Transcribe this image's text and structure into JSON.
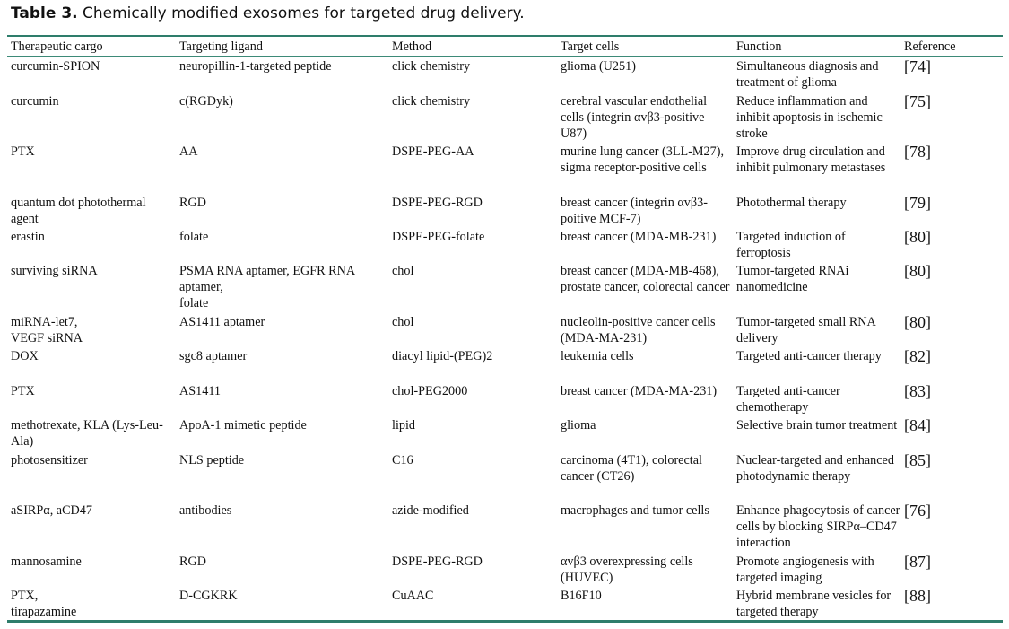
{
  "caption": {
    "label": "Table 3.",
    "text": "Chemically modified exosomes for targeted drug delivery."
  },
  "table": {
    "headers": [
      "Therapeutic cargo",
      "Targeting ligand",
      "Method",
      "Target cells",
      "Function",
      "Reference"
    ],
    "rows": [
      {
        "h": 39,
        "cells": [
          "curcumin-SPION",
          "neuropillin-1-targeted peptide",
          "click chemistry",
          "glioma (U251)",
          "Simultaneous diagnosis and treatment of glioma",
          "[74]"
        ]
      },
      {
        "h": 56,
        "cells": [
          "curcumin",
          "c(RGDyk)",
          "click chemistry",
          "cerebral vascular endothelial cells (integrin αvβ3-positive U87)",
          "Reduce inflammation and inhibit apoptosis in ischemic stroke",
          "[75]"
        ]
      },
      {
        "h": 57,
        "cells": [
          "PTX",
          "AA",
          "DSPE-PEG-AA",
          "murine lung cancer (3LL-M27), sigma receptor-positive cells",
          "Improve drug circulation and inhibit pulmonary metastases",
          "[78]"
        ]
      },
      {
        "h": 38,
        "cells": [
          "quantum dot photothermal agent",
          "RGD",
          "DSPE-PEG-RGD",
          "breast cancer (integrin αvβ3-poitive MCF-7)",
          "Photothermal therapy",
          "[79]"
        ]
      },
      {
        "h": 38,
        "cells": [
          "erastin",
          "folate",
          "DSPE-PEG-folate",
          "breast cancer (MDA-MB-231)",
          "Targeted induction of ferroptosis",
          "[80]"
        ]
      },
      {
        "h": 57,
        "cells": [
          "surviving siRNA",
          "PSMA RNA aptamer, EGFR RNA aptamer,\nfolate",
          "chol",
          "breast cancer (MDA-MB-468), prostate cancer, colorectal cancer",
          "Tumor-targeted RNAi nanomedicine",
          "[80]"
        ]
      },
      {
        "h": 38,
        "cells": [
          "miRNA-let7,\nVEGF siRNA",
          "AS1411 aptamer",
          "chol",
          "nucleolin-positive cancer cells (MDA-MA-231)",
          "Tumor-targeted small RNA delivery",
          "[80]"
        ]
      },
      {
        "h": 39,
        "cells": [
          "DOX",
          "sgc8 aptamer",
          "diacyl lipid-(PEG)2",
          "leukemia cells",
          "Targeted anti-cancer therapy",
          "[82]"
        ]
      },
      {
        "h": 38,
        "cells": [
          "PTX",
          "AS1411",
          "chol-PEG2000",
          "breast cancer (MDA-MA-231)",
          "Targeted anti-cancer chemotherapy",
          "[83]"
        ]
      },
      {
        "h": 39,
        "cells": [
          "methotrexate, KLA (Lys-Leu-Ala)",
          "ApoA-1 mimetic peptide",
          "lipid",
          "glioma",
          "Selective brain tumor treatment",
          "[84]"
        ]
      },
      {
        "h": 56,
        "cells": [
          "photosensitizer",
          "NLS peptide",
          "C16",
          "carcinoma (4T1), colorectal cancer (CT26)",
          "Nuclear-targeted and enhanced photodynamic therapy",
          "[85]"
        ]
      },
      {
        "h": 57,
        "cells": [
          "aSIRPα, aCD47",
          "antibodies",
          "azide-modified",
          "macrophages and tumor cells",
          "Enhance phagocytosis of cancer cells by blocking SIRPα–CD47 interaction",
          "[76]"
        ]
      },
      {
        "h": 38,
        "cells": [
          "mannosamine",
          "RGD",
          "DSPE-PEG-RGD",
          "αvβ3 overexpressing cells (HUVEC)",
          "Promote angiogenesis with targeted imaging",
          "[87]"
        ]
      },
      {
        "h": 38,
        "cells": [
          "PTX,\ntirapazamine",
          "D-CGKRK",
          "CuAAC",
          "B16F10",
          "Hybrid membrane vesicles for targeted therapy",
          "[88]"
        ]
      }
    ]
  }
}
